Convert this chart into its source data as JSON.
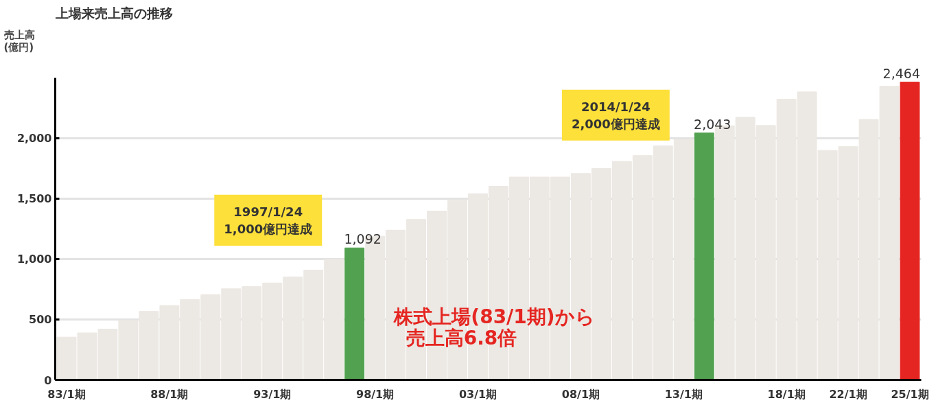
{
  "chart_data": {
    "type": "bar",
    "title": "上場来売上高の推移",
    "ylabel": "売上高\n(億円)",
    "categories": [
      "83/1期",
      null,
      null,
      null,
      null,
      "88/1期",
      null,
      null,
      null,
      null,
      "93/1期",
      null,
      null,
      null,
      null,
      "98/1期",
      null,
      null,
      null,
      null,
      "03/1期",
      null,
      null,
      null,
      null,
      "08/1期",
      null,
      null,
      null,
      null,
      "13/1期",
      null,
      null,
      null,
      null,
      "18/1期",
      null,
      null,
      "22/1期",
      null,
      null,
      "25/1期"
    ],
    "values": [
      354,
      389,
      420,
      492,
      567,
      615,
      665,
      706,
      754,
      772,
      802,
      852,
      908,
      997,
      1092,
      1189,
      1239,
      1328,
      1397,
      1490,
      1541,
      1602,
      1678,
      1678,
      1678,
      1708,
      1749,
      1808,
      1856,
      1936,
      1990,
      2043,
      2103,
      2173,
      2105,
      2323,
      2383,
      1899,
      1930,
      2155,
      2430,
      2464
    ],
    "colors": [
      "#ece8e3",
      "#ece8e3",
      "#ece8e3",
      "#ece8e3",
      "#ece8e3",
      "#ece8e3",
      "#ece8e3",
      "#ece8e3",
      "#ece8e3",
      "#ece8e3",
      "#ece8e3",
      "#ece8e3",
      "#ece8e3",
      "#ece8e3",
      "#52a150",
      "#ece8e3",
      "#ece8e3",
      "#ece8e3",
      "#ece8e3",
      "#ece8e3",
      "#ece8e3",
      "#ece8e3",
      "#ece8e3",
      "#ece8e3",
      "#ece8e3",
      "#ece8e3",
      "#ece8e3",
      "#ece8e3",
      "#ece8e3",
      "#ece8e3",
      "#ece8e3",
      "#52a150",
      "#ece8e3",
      "#ece8e3",
      "#ece8e3",
      "#ece8e3",
      "#ece8e3",
      "#ece8e3",
      "#ece8e3",
      "#ece8e3",
      "#ece8e3",
      "#e52521"
    ],
    "value_labels": [
      null,
      null,
      null,
      null,
      null,
      null,
      null,
      null,
      null,
      null,
      null,
      null,
      null,
      null,
      "1,092",
      null,
      null,
      null,
      null,
      null,
      null,
      null,
      null,
      null,
      null,
      null,
      null,
      null,
      null,
      null,
      null,
      "2,043",
      null,
      null,
      null,
      null,
      null,
      null,
      null,
      null,
      null,
      "2,464"
    ],
    "ylim": [
      0,
      2500
    ],
    "yticks": [
      0,
      500,
      {
        "value": 1000,
        "label": "1,000"
      },
      {
        "value": 1500,
        "label": "1,500"
      },
      {
        "value": 2000,
        "label": "2,000"
      }
    ],
    "grid": "y",
    "annotations": [
      "1997/1/24\n1,000億円達成",
      "2014/1/24\n2,000億円達成",
      "株式上場(83/1期)から",
      "売上高6.8倍"
    ]
  }
}
